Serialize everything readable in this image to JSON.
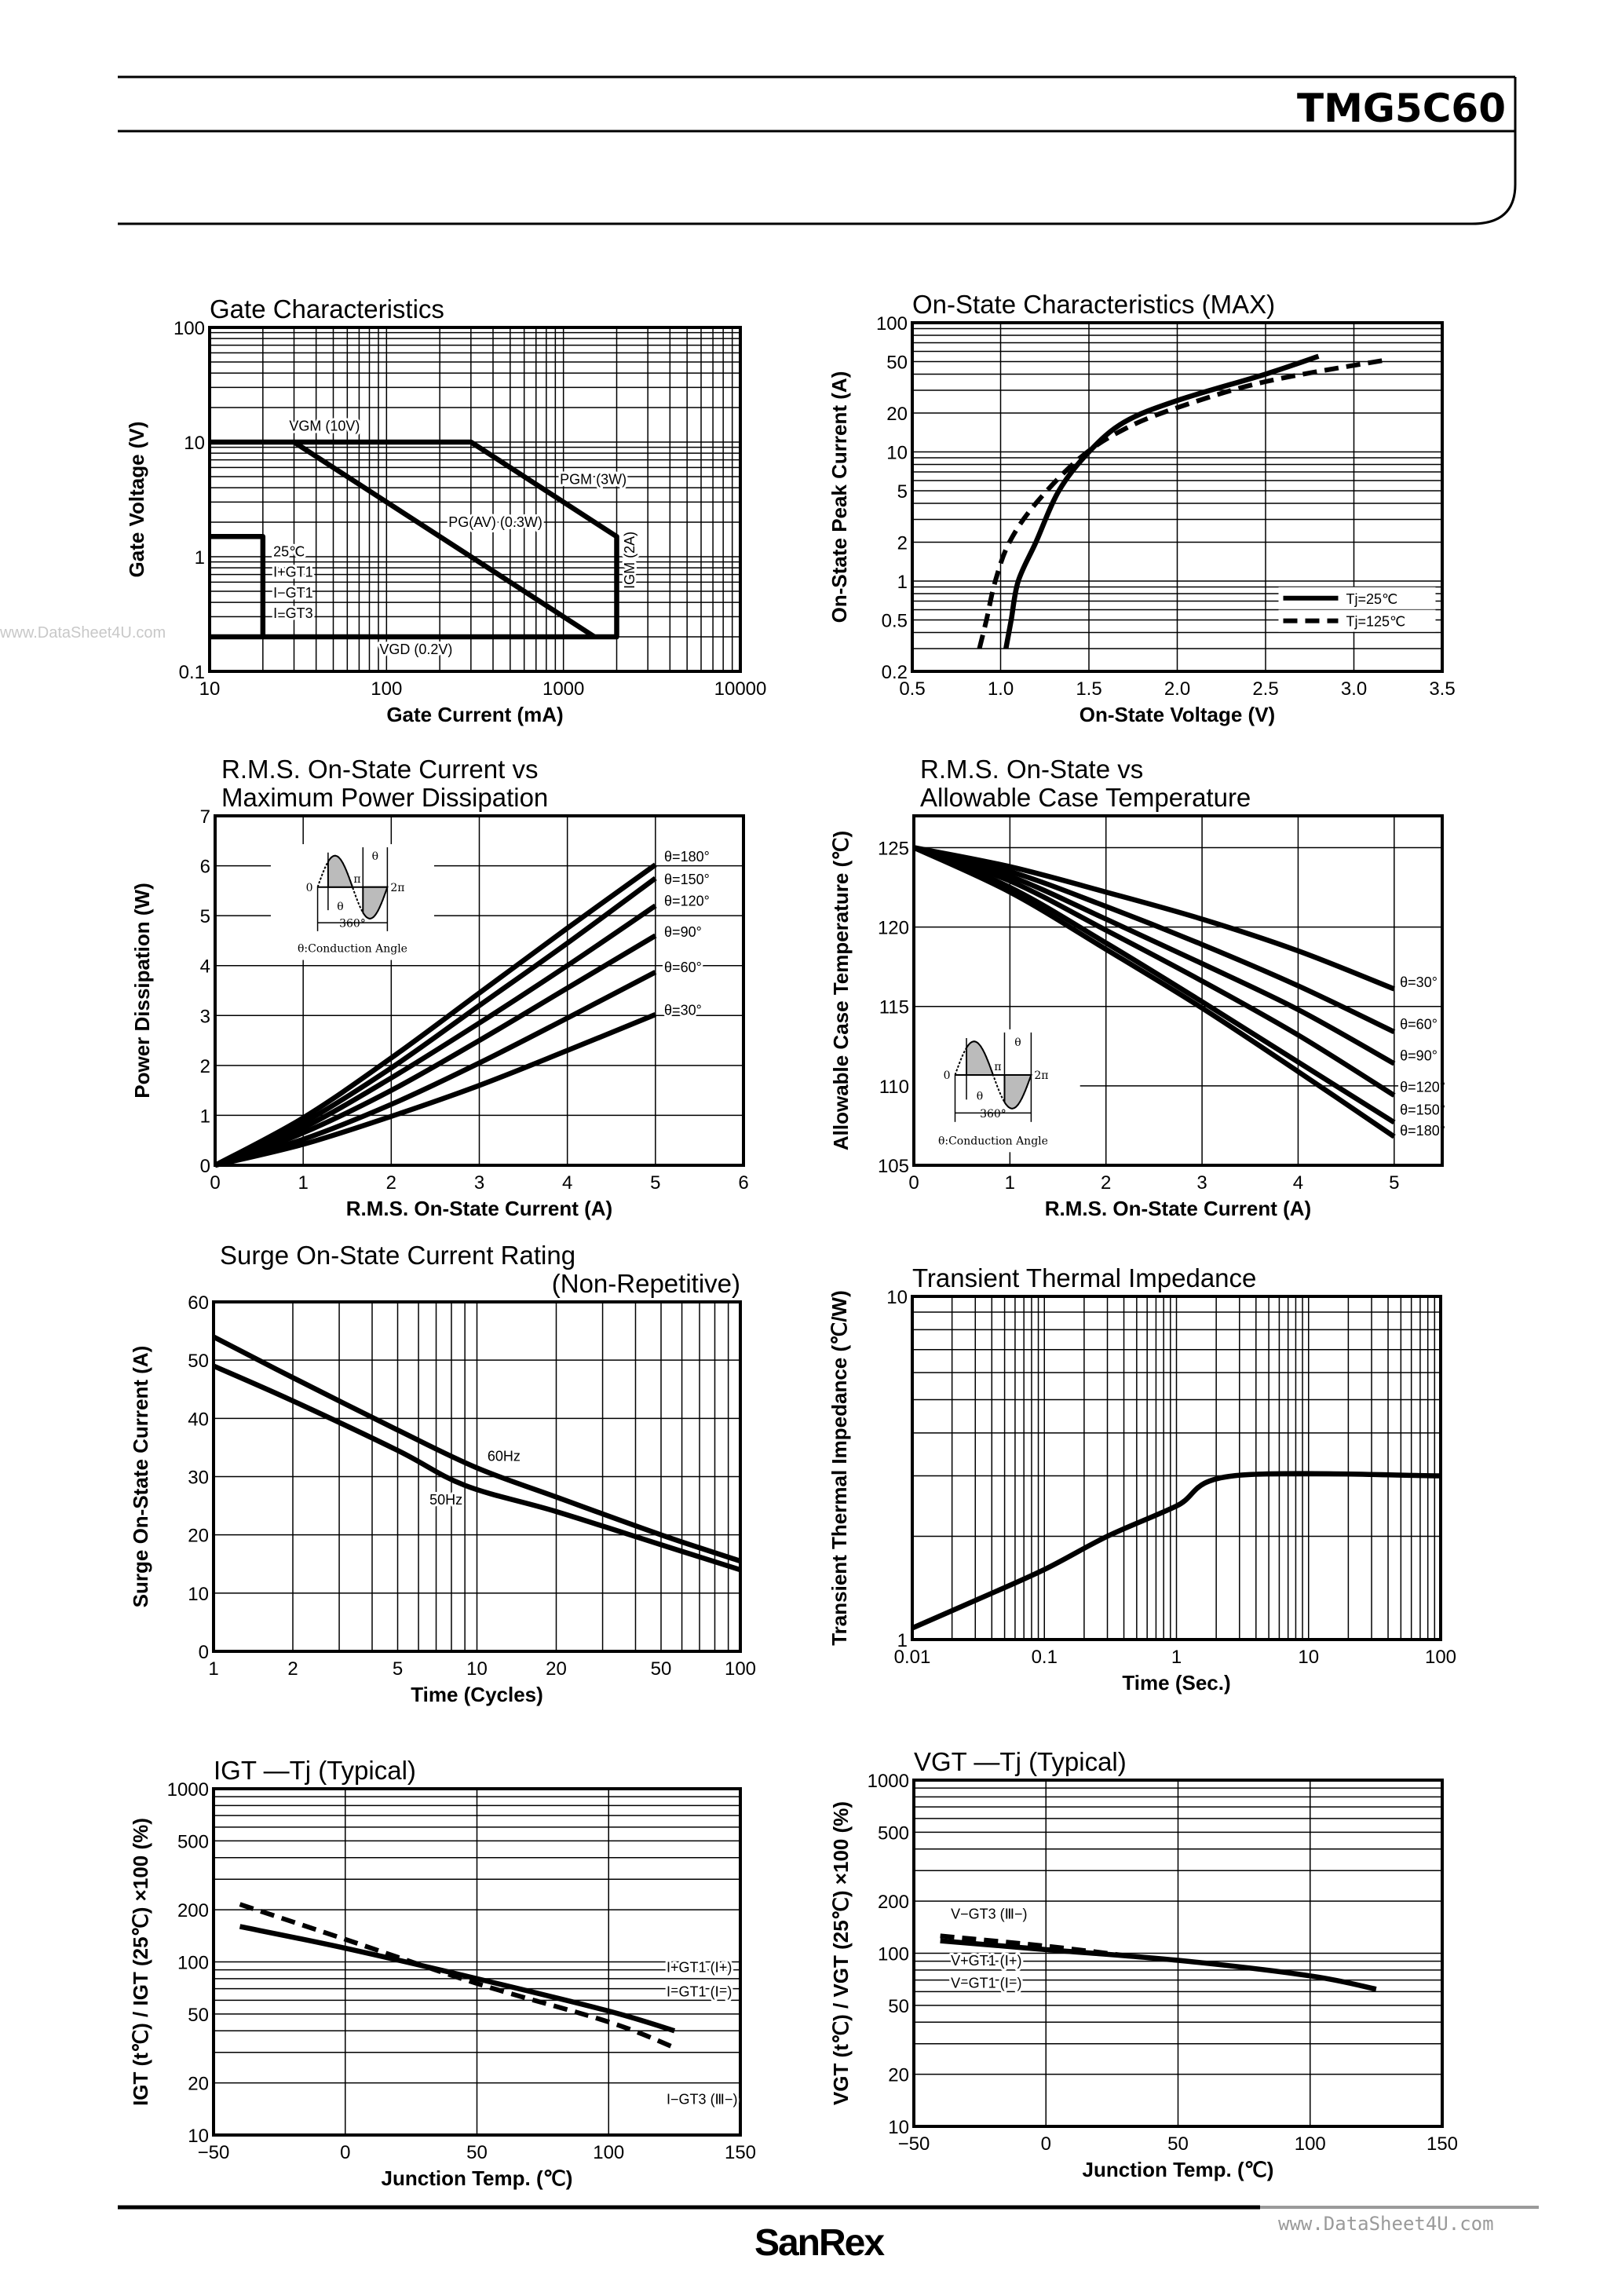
{
  "header": {
    "part_number": "TMG5C60"
  },
  "footer": {
    "brand": "SanRex",
    "watermark": "www.DataSheet4U.com"
  },
  "watermark_left": "www.DataSheet4U.com",
  "inset": {
    "conduction_angle": "θ:Conduction Angle",
    "period": "360°",
    "zero": "0",
    "pi": "π",
    "two_pi": "2π",
    "theta": "θ"
  },
  "chart_data": [
    {
      "type": "line",
      "id": "gate",
      "title": [
        "Gate Characteristics"
      ],
      "xlabel": "Gate Current (mA)",
      "ylabel": "Gate Voltage (V)",
      "xscale": "log",
      "yscale": "log",
      "xlim": [
        10,
        10000
      ],
      "ylim": [
        0.1,
        100
      ],
      "grid": true,
      "xticks": [
        10,
        100,
        1000,
        10000
      ],
      "xtick_labels": [
        "10",
        "100",
        "1000",
        "10000"
      ],
      "yticks": [
        0.1,
        1,
        10,
        100
      ],
      "ytick_labels": [
        "0.1",
        "1",
        "10",
        "100"
      ],
      "series": [
        {
          "name": "",
          "dashed": false,
          "points": [
            [
              10,
              10
            ],
            [
              300,
              10
            ],
            [
              2000,
              1.5
            ],
            [
              2000,
              0.2
            ],
            [
              10,
              0.2
            ]
          ]
        },
        {
          "name": "",
          "dashed": false,
          "points": [
            [
              30,
              10
            ],
            [
              1500,
              0.2
            ]
          ]
        },
        {
          "name": "",
          "dashed": false,
          "points": [
            [
              10,
              1.5
            ],
            [
              20,
              1.5
            ],
            [
              20,
              0.2
            ]
          ]
        }
      ],
      "annotations": [
        "VGM (10V)",
        "PGM (3W)",
        "PG(AV) (0.3W)",
        "25℃",
        "I+GT1",
        "I−GT1",
        "I−GT3",
        "VGD (0.2V)",
        "IGM (2A)"
      ]
    },
    {
      "type": "line",
      "id": "on-state",
      "title": [
        "On-State Characteristics (MAX)"
      ],
      "xlabel": "On-State Voltage (V)",
      "ylabel": "On-State Peak Current (A)",
      "xscale": "linear",
      "yscale": "log",
      "xlim": [
        0.5,
        3.5
      ],
      "ylim": [
        0.2,
        100
      ],
      "grid": true,
      "xticks": [
        0.5,
        1.0,
        1.5,
        2.0,
        2.5,
        3.0,
        3.5
      ],
      "xtick_labels": [
        "0.5",
        "1.0",
        "1.5",
        "2.0",
        "2.5",
        "3.0",
        "3.5"
      ],
      "yticks": [
        0.2,
        0.5,
        1,
        2,
        5,
        10,
        20,
        50,
        100
      ],
      "ytick_labels": [
        "0.2",
        "0.5",
        "1",
        "2",
        "5",
        "10",
        "20",
        "50",
        "100"
      ],
      "legend": "bottom-right",
      "series": [
        {
          "name": "Tj=25℃",
          "dashed": false,
          "points": [
            [
              1.03,
              0.3
            ],
            [
              1.06,
              0.5
            ],
            [
              1.1,
              1
            ],
            [
              1.2,
              2
            ],
            [
              1.33,
              5
            ],
            [
              1.5,
              10
            ],
            [
              1.7,
              17
            ],
            [
              2.0,
              25
            ],
            [
              2.5,
              40
            ],
            [
              2.8,
              55
            ]
          ]
        },
        {
          "name": "Tj=125℃",
          "dashed": true,
          "points": [
            [
              0.88,
              0.3
            ],
            [
              0.92,
              0.5
            ],
            [
              0.97,
              1
            ],
            [
              1.05,
              2
            ],
            [
              1.2,
              4
            ],
            [
              1.45,
              9
            ],
            [
              1.7,
              15
            ],
            [
              2.0,
              22
            ],
            [
              2.5,
              35
            ],
            [
              3.2,
              52
            ]
          ]
        }
      ],
      "annotations": []
    },
    {
      "type": "line",
      "id": "power-dissipation",
      "title": [
        "R.M.S. On-State Current vs",
        "Maximum Power Dissipation"
      ],
      "xlabel": "R.M.S. On-State Current (A)",
      "ylabel": "Power Dissipation (W)",
      "xscale": "linear",
      "yscale": "linear",
      "xlim": [
        0,
        6
      ],
      "ylim": [
        0,
        7
      ],
      "grid": true,
      "xticks": [
        0,
        1,
        2,
        3,
        4,
        5,
        6
      ],
      "xtick_labels": [
        "0",
        "1",
        "2",
        "3",
        "4",
        "5",
        "6"
      ],
      "yticks": [
        0,
        1,
        2,
        3,
        4,
        5,
        6,
        7
      ],
      "ytick_labels": [
        "0",
        "1",
        "2",
        "3",
        "4",
        "5",
        "6",
        "7"
      ],
      "series": [
        {
          "name": "θ=180°",
          "dashed": false,
          "points": [
            [
              0,
              0
            ],
            [
              1,
              0.95
            ],
            [
              2,
              2.15
            ],
            [
              3,
              3.45
            ],
            [
              4,
              4.75
            ],
            [
              5,
              6.02
            ]
          ]
        },
        {
          "name": "θ=150°",
          "dashed": false,
          "points": [
            [
              0,
              0
            ],
            [
              1,
              0.85
            ],
            [
              2,
              1.95
            ],
            [
              3,
              3.2
            ],
            [
              4,
              4.45
            ],
            [
              5,
              5.75
            ]
          ]
        },
        {
          "name": "θ=120°",
          "dashed": false,
          "points": [
            [
              0,
              0
            ],
            [
              1,
              0.75
            ],
            [
              2,
              1.75
            ],
            [
              3,
              2.85
            ],
            [
              4,
              4.0
            ],
            [
              5,
              5.2
            ]
          ]
        },
        {
          "name": "θ=90°",
          "dashed": false,
          "points": [
            [
              0,
              0
            ],
            [
              1,
              0.65
            ],
            [
              2,
              1.5
            ],
            [
              3,
              2.5
            ],
            [
              4,
              3.55
            ],
            [
              5,
              4.6
            ]
          ]
        },
        {
          "name": "θ=60°",
          "dashed": false,
          "points": [
            [
              0,
              0
            ],
            [
              1,
              0.52
            ],
            [
              2,
              1.22
            ],
            [
              3,
              2.05
            ],
            [
              4,
              2.95
            ],
            [
              5,
              3.87
            ]
          ]
        },
        {
          "name": "θ=30°",
          "dashed": false,
          "points": [
            [
              0,
              0
            ],
            [
              1,
              0.42
            ],
            [
              2,
              0.98
            ],
            [
              3,
              1.6
            ],
            [
              4,
              2.3
            ],
            [
              5,
              3.02
            ]
          ]
        }
      ],
      "annotations": []
    },
    {
      "type": "line",
      "id": "case-temperature",
      "title": [
        "R.M.S. On-State vs",
        "Allowable Case Temperature"
      ],
      "xlabel": "R.M.S. On-State Current (A)",
      "ylabel": "Allowable Case Temperature (℃)",
      "xscale": "linear",
      "yscale": "linear",
      "xlim": [
        0,
        5.5
      ],
      "ylim": [
        105,
        127
      ],
      "grid": true,
      "xticks": [
        0,
        1,
        2,
        3,
        4,
        5
      ],
      "xtick_labels": [
        "0",
        "1",
        "2",
        "3",
        "4",
        "5"
      ],
      "yticks": [
        105,
        110,
        115,
        120,
        125
      ],
      "ytick_labels": [
        "105",
        "110",
        "115",
        "120",
        "125"
      ],
      "series": [
        {
          "name": "θ=30°",
          "dashed": false,
          "points": [
            [
              0,
              125
            ],
            [
              1,
              123.8
            ],
            [
              2,
              122.2
            ],
            [
              3,
              120.5
            ],
            [
              4,
              118.5
            ],
            [
              5,
              116.1
            ]
          ]
        },
        {
          "name": "θ=60°",
          "dashed": false,
          "points": [
            [
              0,
              125
            ],
            [
              1,
              123.5
            ],
            [
              2,
              121.3
            ],
            [
              3,
              118.9
            ],
            [
              4,
              116.3
            ],
            [
              5,
              113.4
            ]
          ]
        },
        {
          "name": "θ=90°",
          "dashed": false,
          "points": [
            [
              0,
              125
            ],
            [
              1,
              123.2
            ],
            [
              2,
              120.5
            ],
            [
              3,
              117.7
            ],
            [
              4,
              114.8
            ],
            [
              5,
              111.4
            ]
          ]
        },
        {
          "name": "θ=120°",
          "dashed": false,
          "points": [
            [
              0,
              125
            ],
            [
              1,
              122.9
            ],
            [
              2,
              119.8
            ],
            [
              3,
              116.6
            ],
            [
              4,
              113.2
            ],
            [
              5,
              109.4
            ]
          ]
        },
        {
          "name": "θ=150°",
          "dashed": false,
          "points": [
            [
              0,
              125
            ],
            [
              1,
              122.5
            ],
            [
              2,
              119.0
            ],
            [
              3,
              115.3
            ],
            [
              4,
              111.5
            ],
            [
              5,
              107.7
            ]
          ]
        },
        {
          "name": "θ=180°",
          "dashed": false,
          "points": [
            [
              0,
              125
            ],
            [
              1,
              122.2
            ],
            [
              2,
              118.6
            ],
            [
              3,
              114.9
            ],
            [
              4,
              110.9
            ],
            [
              5,
              106.8
            ]
          ]
        }
      ],
      "annotations": []
    },
    {
      "type": "line",
      "id": "surge-current",
      "title": [
        "Surge On-State Current Rating",
        "(Non-Repetitive)"
      ],
      "xlabel": "Time (Cycles)",
      "ylabel": "Surge On-State Current (A)",
      "xscale": "log",
      "yscale": "linear",
      "xlim": [
        1,
        100
      ],
      "ylim": [
        0,
        60
      ],
      "grid": true,
      "xticks": [
        1,
        2,
        5,
        10,
        20,
        50,
        100
      ],
      "xtick_labels": [
        "1",
        "2",
        "5",
        "10",
        "20",
        "50",
        "100"
      ],
      "yticks": [
        0,
        10,
        20,
        30,
        40,
        50,
        60
      ],
      "ytick_labels": [
        "0",
        "10",
        "20",
        "30",
        "40",
        "50",
        "60"
      ],
      "series": [
        {
          "name": "60Hz",
          "dashed": false,
          "points": [
            [
              1,
              54
            ],
            [
              2,
              47
            ],
            [
              5,
              38
            ],
            [
              10,
              31.5
            ],
            [
              20,
              26.5
            ],
            [
              50,
              20
            ],
            [
              100,
              15.5
            ]
          ]
        },
        {
          "name": "50Hz",
          "dashed": false,
          "points": [
            [
              1,
              49
            ],
            [
              2,
              43
            ],
            [
              5,
              34.5
            ],
            [
              9,
              28.5
            ],
            [
              20,
              24
            ],
            [
              50,
              18.3
            ],
            [
              100,
              14
            ]
          ]
        }
      ],
      "annotations": []
    },
    {
      "type": "line",
      "id": "thermal-impedance",
      "title": [
        "Transient Thermal Impedance"
      ],
      "xlabel": "Time (Sec.)",
      "ylabel": "Transient Thermal Impedance (℃/W)",
      "xscale": "log",
      "yscale": "log",
      "xlim": [
        0.01,
        100
      ],
      "ylim": [
        1,
        10
      ],
      "grid": true,
      "xticks": [
        0.01,
        0.1,
        1,
        10,
        100
      ],
      "xtick_labels": [
        "0.01",
        "0.1",
        "1",
        "10",
        "100"
      ],
      "yticks": [
        1,
        10
      ],
      "ytick_labels": [
        "1",
        "10"
      ],
      "series": [
        {
          "name": "",
          "dashed": false,
          "points": [
            [
              0.01,
              1.08
            ],
            [
              0.03,
              1.3
            ],
            [
              0.1,
              1.6
            ],
            [
              0.3,
              2.0
            ],
            [
              1,
              2.45
            ],
            [
              2.7,
              3.0
            ],
            [
              100,
              3.0
            ]
          ]
        }
      ],
      "annotations": []
    },
    {
      "type": "line",
      "id": "igt-tj",
      "title": [
        "IGT —Tj (Typical)"
      ],
      "xlabel": "Junction Temp. (℃)",
      "ylabel": "IGT (t℃) / IGT (25℃) ×100 (%)",
      "xscale": "linear",
      "yscale": "log",
      "xlim": [
        -50,
        150
      ],
      "ylim": [
        10,
        1000
      ],
      "grid": true,
      "xticks": [
        -50,
        0,
        50,
        100,
        150
      ],
      "xtick_labels": [
        "−50",
        "0",
        "50",
        "100",
        "150"
      ],
      "yticks": [
        10,
        20,
        50,
        100,
        200,
        500,
        1000
      ],
      "ytick_labels": [
        "10",
        "20",
        "50",
        "100",
        "200",
        "500",
        "1000"
      ],
      "series": [
        {
          "name": "I+GT1 (Ⅰ+) / I−GT1 (Ⅰ−)",
          "dashed": false,
          "points": [
            [
              -40,
              160
            ],
            [
              0,
              120
            ],
            [
              50,
              80
            ],
            [
              100,
              52
            ],
            [
              125,
              40
            ]
          ]
        },
        {
          "name": "I−GT3 (Ⅲ−)",
          "dashed": true,
          "points": [
            [
              -40,
              215
            ],
            [
              0,
              135
            ],
            [
              50,
              75
            ],
            [
              100,
              45
            ],
            [
              125,
              32
            ]
          ]
        }
      ],
      "annotations": [
        "I+GT1 (Ⅰ+)",
        "I−GT1 (Ⅰ−)",
        "I−GT3 (Ⅲ−)"
      ]
    },
    {
      "type": "line",
      "id": "vgt-tj",
      "title": [
        "VGT —Tj (Typical)"
      ],
      "xlabel": "Junction Temp. (℃)",
      "ylabel": "VGT (t℃) / VGT (25℃) ×100 (%)",
      "xscale": "linear",
      "yscale": "log",
      "xlim": [
        -50,
        150
      ],
      "ylim": [
        10,
        1000
      ],
      "grid": true,
      "xticks": [
        -50,
        0,
        50,
        100,
        150
      ],
      "xtick_labels": [
        "−50",
        "0",
        "50",
        "100",
        "150"
      ],
      "yticks": [
        10,
        20,
        50,
        100,
        200,
        500,
        1000
      ],
      "ytick_labels": [
        "10",
        "20",
        "50",
        "100",
        "200",
        "500",
        "1000"
      ],
      "series": [
        {
          "name": "V+GT1 (Ⅰ+) / V−GT1 (Ⅰ−)",
          "dashed": false,
          "points": [
            [
              -40,
              118
            ],
            [
              0,
              105
            ],
            [
              50,
              91
            ],
            [
              100,
              74
            ],
            [
              125,
              62
            ]
          ]
        },
        {
          "name": "V−GT3 (Ⅲ−)",
          "dashed": true,
          "points": [
            [
              -40,
              126
            ],
            [
              0,
              110
            ],
            [
              30,
              97
            ]
          ]
        }
      ],
      "annotations": [
        "V−GT3 (Ⅲ−)",
        "V+GT1 (Ⅰ+)",
        "V−GT1 (Ⅰ−)"
      ]
    }
  ]
}
